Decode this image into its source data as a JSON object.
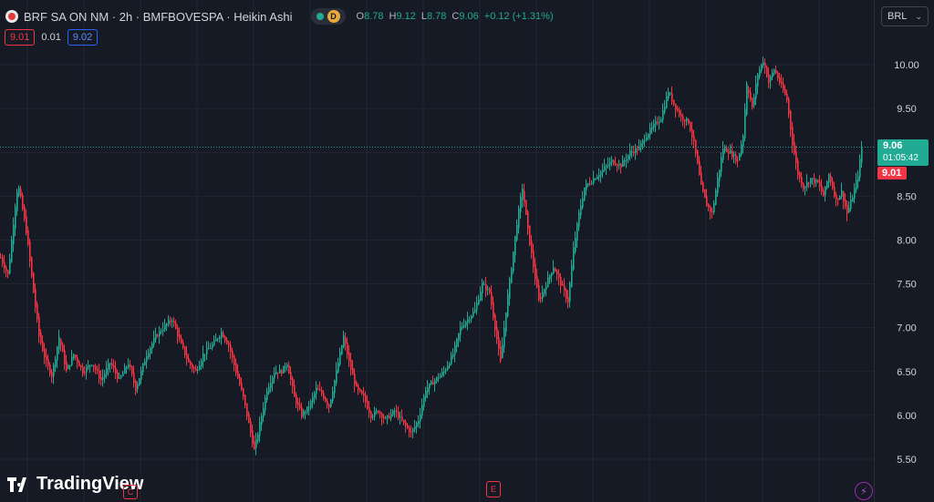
{
  "header": {
    "title": "BRF SA ON NM · 2h · BMFBOVESPA · Heikin Ashi",
    "status_letter": "D",
    "ohlc": [
      {
        "key": "O",
        "value": "8.78"
      },
      {
        "key": "H",
        "value": "9.12"
      },
      {
        "key": "L",
        "value": "8.78"
      },
      {
        "key": "C",
        "value": "9.06"
      }
    ],
    "change": "+0.12 (+1.31%)"
  },
  "quotes": {
    "sell": "9.01",
    "spread": "0.01",
    "buy": "9.02"
  },
  "currency": "BRL",
  "price_labels": {
    "last": "9.06",
    "countdown": "01:05:42",
    "bid": "9.01"
  },
  "brand": "TradingView",
  "markers": {
    "left": "C",
    "mid": "E"
  },
  "colors": {
    "up": "#22ab94",
    "down": "#f23645",
    "background": "#161a25",
    "grid": "#232632",
    "axis_text": "#d1d4dc"
  },
  "chart_data": {
    "type": "candlestick",
    "style": "Heikin Ashi",
    "symbol": "BRF SA ON NM",
    "interval": "2h",
    "exchange": "BMFBOVESPA",
    "y_ticks": [
      10.0,
      9.5,
      9.0,
      8.5,
      8.0,
      7.5,
      7.0,
      6.5,
      6.0,
      5.5
    ],
    "y_tick_labels": [
      "10.00",
      "9.50",
      "9.00",
      "8.50",
      "8.00",
      "7.50",
      "7.00",
      "6.50",
      "6.00",
      "5.50"
    ],
    "ylim": [
      5.4,
      10.45
    ],
    "last_price": 9.06,
    "grid": true,
    "anchors": [
      [
        0,
        7.8
      ],
      [
        8,
        7.6
      ],
      [
        16,
        8.4
      ],
      [
        19,
        8.65
      ],
      [
        28,
        8.1
      ],
      [
        36,
        7.4
      ],
      [
        42,
        6.9
      ],
      [
        50,
        6.6
      ],
      [
        56,
        6.45
      ],
      [
        64,
        6.9
      ],
      [
        72,
        6.5
      ],
      [
        80,
        6.7
      ],
      [
        90,
        6.5
      ],
      [
        100,
        6.6
      ],
      [
        110,
        6.4
      ],
      [
        120,
        6.6
      ],
      [
        130,
        6.4
      ],
      [
        140,
        6.6
      ],
      [
        148,
        6.3
      ],
      [
        160,
        6.7
      ],
      [
        170,
        6.9
      ],
      [
        178,
        7.0
      ],
      [
        188,
        7.1
      ],
      [
        198,
        6.8
      ],
      [
        206,
        6.6
      ],
      [
        214,
        6.5
      ],
      [
        222,
        6.7
      ],
      [
        232,
        6.8
      ],
      [
        242,
        6.95
      ],
      [
        250,
        6.8
      ],
      [
        258,
        6.5
      ],
      [
        266,
        6.2
      ],
      [
        272,
        5.9
      ],
      [
        278,
        5.6
      ],
      [
        284,
        5.9
      ],
      [
        292,
        6.3
      ],
      [
        300,
        6.5
      ],
      [
        308,
        6.5
      ],
      [
        314,
        6.6
      ],
      [
        322,
        6.2
      ],
      [
        330,
        6.0
      ],
      [
        338,
        6.1
      ],
      [
        346,
        6.3
      ],
      [
        352,
        6.25
      ],
      [
        360,
        6.1
      ],
      [
        368,
        6.5
      ],
      [
        376,
        6.9
      ],
      [
        382,
        6.6
      ],
      [
        390,
        6.3
      ],
      [
        398,
        6.2
      ],
      [
        406,
        6.0
      ],
      [
        414,
        6.05
      ],
      [
        422,
        5.95
      ],
      [
        432,
        6.05
      ],
      [
        442,
        5.9
      ],
      [
        450,
        5.8
      ],
      [
        458,
        5.95
      ],
      [
        466,
        6.3
      ],
      [
        476,
        6.4
      ],
      [
        486,
        6.5
      ],
      [
        496,
        6.7
      ],
      [
        504,
        7.0
      ],
      [
        512,
        7.1
      ],
      [
        520,
        7.2
      ],
      [
        528,
        7.5
      ],
      [
        536,
        7.4
      ],
      [
        542,
        7.0
      ],
      [
        548,
        6.6
      ],
      [
        554,
        7.2
      ],
      [
        560,
        7.7
      ],
      [
        566,
        8.2
      ],
      [
        572,
        8.6
      ],
      [
        578,
        8.1
      ],
      [
        584,
        7.7
      ],
      [
        590,
        7.3
      ],
      [
        598,
        7.5
      ],
      [
        606,
        7.7
      ],
      [
        614,
        7.5
      ],
      [
        622,
        7.3
      ],
      [
        628,
        7.9
      ],
      [
        634,
        8.3
      ],
      [
        640,
        8.6
      ],
      [
        650,
        8.7
      ],
      [
        660,
        8.8
      ],
      [
        670,
        8.9
      ],
      [
        680,
        8.85
      ],
      [
        690,
        9.0
      ],
      [
        700,
        9.05
      ],
      [
        708,
        9.2
      ],
      [
        716,
        9.3
      ],
      [
        724,
        9.4
      ],
      [
        732,
        9.7
      ],
      [
        738,
        9.55
      ],
      [
        746,
        9.4
      ],
      [
        754,
        9.35
      ],
      [
        760,
        9.1
      ],
      [
        768,
        8.6
      ],
      [
        774,
        8.4
      ],
      [
        780,
        8.3
      ],
      [
        786,
        8.7
      ],
      [
        792,
        9.05
      ],
      [
        800,
        9.0
      ],
      [
        808,
        8.9
      ],
      [
        814,
        9.2
      ],
      [
        818,
        9.8
      ],
      [
        824,
        9.5
      ],
      [
        830,
        9.9
      ],
      [
        836,
        10.05
      ],
      [
        842,
        9.8
      ],
      [
        848,
        9.95
      ],
      [
        854,
        9.8
      ],
      [
        862,
        9.6
      ],
      [
        868,
        9.1
      ],
      [
        874,
        8.75
      ],
      [
        880,
        8.6
      ],
      [
        888,
        8.7
      ],
      [
        896,
        8.65
      ],
      [
        902,
        8.5
      ],
      [
        908,
        8.75
      ],
      [
        916,
        8.45
      ],
      [
        922,
        8.55
      ],
      [
        928,
        8.3
      ],
      [
        934,
        8.5
      ],
      [
        940,
        8.75
      ],
      [
        944,
        9.06
      ]
    ]
  }
}
